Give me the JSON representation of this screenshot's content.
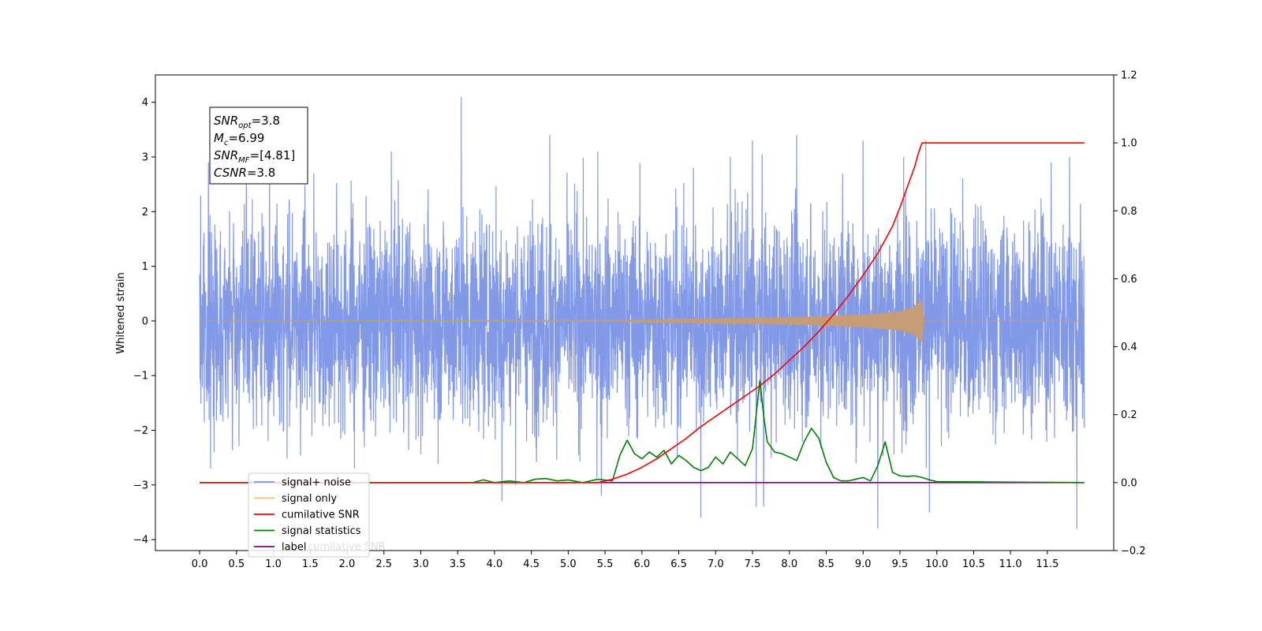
{
  "chart_data": {
    "type": "line",
    "title": "",
    "xlabel": "",
    "ylabel": "Whitened strain",
    "xlim": [
      -0.6,
      12.4
    ],
    "ylim": [
      -4.2,
      4.5
    ],
    "y2lim": [
      -0.2,
      1.2
    ],
    "x_ticks": [
      "0.0",
      "0.5",
      "1.0",
      "1.5",
      "2.0",
      "2.5",
      "3.0",
      "3.5",
      "4.0",
      "4.5",
      "5.0",
      "5.5",
      "6.0",
      "6.5",
      "7.0",
      "7.5",
      "8.0",
      "8.5",
      "9.0",
      "9.5",
      "10.0",
      "10.5",
      "11.0",
      "11.5"
    ],
    "y_ticks": [
      "4",
      "3",
      "2",
      "1",
      "0",
      "−1",
      "−2",
      "−3",
      "−4"
    ],
    "y2_ticks": [
      "1.2",
      "1.0",
      "0.8",
      "0.6",
      "0.4",
      "0.2",
      "0.0",
      "−0.2"
    ],
    "grid": false,
    "legend_position": "lower-left",
    "annotations": [
      {
        "main": "SNR",
        "sub": "opt",
        "rest": "=3.8"
      },
      {
        "main": "M",
        "sub": "c",
        "rest": "=6.99"
      },
      {
        "main": "SNR",
        "sub": "MF",
        "rest": "=[4.81]"
      },
      {
        "main": "CSNR",
        "sub": "",
        "rest": "=3.8"
      }
    ],
    "series": [
      {
        "name": "signal+ noise",
        "color": "#7b93e6",
        "axis": "left",
        "x_range": [
          0.0,
          12.0
        ],
        "envelope_std": 0.95,
        "peak_values": [
          {
            "x": 0.12,
            "y": 2.9
          },
          {
            "x": 0.95,
            "y": 2.9
          },
          {
            "x": 1.55,
            "y": 2.7
          },
          {
            "x": 2.6,
            "y": 3.1
          },
          {
            "x": 3.55,
            "y": 4.1
          },
          {
            "x": 4.75,
            "y": 3.4
          },
          {
            "x": 5.4,
            "y": 3.1
          },
          {
            "x": 6.7,
            "y": 2.8
          },
          {
            "x": 7.2,
            "y": 3.0
          },
          {
            "x": 7.5,
            "y": 3.3
          },
          {
            "x": 8.1,
            "y": 3.4
          },
          {
            "x": 9.0,
            "y": 3.3
          },
          {
            "x": 9.55,
            "y": 3.0
          },
          {
            "x": 9.85,
            "y": 3.3
          },
          {
            "x": 11.55,
            "y": 2.9
          },
          {
            "x": 11.8,
            "y": 3.0
          }
        ],
        "trough_values": [
          {
            "x": 0.15,
            "y": -2.7
          },
          {
            "x": 2.1,
            "y": -2.7
          },
          {
            "x": 4.1,
            "y": -3.3
          },
          {
            "x": 5.45,
            "y": -3.2
          },
          {
            "x": 6.8,
            "y": -3.6
          },
          {
            "x": 7.55,
            "y": -3.4
          },
          {
            "x": 7.65,
            "y": -3.4
          },
          {
            "x": 9.2,
            "y": -3.8
          },
          {
            "x": 9.9,
            "y": -3.5
          },
          {
            "x": 11.9,
            "y": -3.8
          }
        ]
      },
      {
        "name": "signal only",
        "color": "#c59c75",
        "axis": "left",
        "amplitude": [
          [
            0.0,
            0.0
          ],
          [
            5.5,
            0.01
          ],
          [
            6.0,
            0.02
          ],
          [
            7.0,
            0.04
          ],
          [
            8.0,
            0.06
          ],
          [
            8.5,
            0.08
          ],
          [
            9.0,
            0.11
          ],
          [
            9.5,
            0.17
          ],
          [
            9.7,
            0.25
          ],
          [
            9.8,
            0.38
          ],
          [
            9.81,
            0.0
          ],
          [
            12.0,
            0.0
          ]
        ]
      },
      {
        "name": "cumilative SNR",
        "color": "#ff0000",
        "axis": "right",
        "x": [
          0.0,
          5.4,
          5.6,
          5.8,
          6.0,
          6.2,
          6.4,
          6.6,
          6.8,
          7.0,
          7.2,
          7.4,
          7.6,
          7.8,
          8.0,
          8.2,
          8.4,
          8.6,
          8.8,
          9.0,
          9.2,
          9.4,
          9.5,
          9.6,
          9.7,
          9.75,
          9.8,
          12.0
        ],
        "y": [
          0.0,
          0.0,
          0.01,
          0.025,
          0.045,
          0.07,
          0.1,
          0.13,
          0.165,
          0.195,
          0.225,
          0.255,
          0.285,
          0.32,
          0.36,
          0.4,
          0.445,
          0.495,
          0.55,
          0.61,
          0.675,
          0.755,
          0.81,
          0.87,
          0.93,
          0.97,
          1.0,
          1.0
        ]
      },
      {
        "name": "signal statistics",
        "color": "#008000",
        "axis": "right",
        "x": [
          0.0,
          3.7,
          3.85,
          4.0,
          4.2,
          4.4,
          4.55,
          4.7,
          4.85,
          5.0,
          5.2,
          5.4,
          5.6,
          5.7,
          5.8,
          5.9,
          6.0,
          6.1,
          6.2,
          6.3,
          6.4,
          6.5,
          6.6,
          6.7,
          6.8,
          6.9,
          7.0,
          7.1,
          7.2,
          7.3,
          7.4,
          7.5,
          7.55,
          7.6,
          7.65,
          7.7,
          7.8,
          7.9,
          8.0,
          8.1,
          8.2,
          8.3,
          8.4,
          8.5,
          8.6,
          8.7,
          8.8,
          8.9,
          9.0,
          9.1,
          9.2,
          9.3,
          9.4,
          9.5,
          9.6,
          9.7,
          9.8,
          9.9,
          10.0,
          12.0
        ],
        "y": [
          0.0,
          0.0,
          0.008,
          0.0,
          0.005,
          0.0,
          0.01,
          0.012,
          0.005,
          0.008,
          0.0,
          0.01,
          0.005,
          0.08,
          0.125,
          0.085,
          0.07,
          0.09,
          0.075,
          0.095,
          0.055,
          0.08,
          0.065,
          0.045,
          0.035,
          0.045,
          0.075,
          0.055,
          0.09,
          0.07,
          0.05,
          0.1,
          0.2,
          0.3,
          0.2,
          0.12,
          0.09,
          0.085,
          0.075,
          0.065,
          0.12,
          0.16,
          0.13,
          0.06,
          0.015,
          0.005,
          0.005,
          0.01,
          0.015,
          0.005,
          0.05,
          0.12,
          0.03,
          0.02,
          0.018,
          0.02,
          0.015,
          0.008,
          0.003,
          0.0
        ]
      },
      {
        "name": "label",
        "color": "#800080",
        "axis": "right",
        "x": [
          0.0,
          12.0
        ],
        "y": [
          0.0,
          0.0
        ]
      }
    ],
    "legend_overlap_text": "cumilative SNR"
  },
  "colors": {
    "noise": "#7b93e6",
    "signal": "#c59c75",
    "signal_legend": "#ffc04d",
    "csnr": "#ff0000",
    "stats": "#008000",
    "label": "#800080"
  }
}
